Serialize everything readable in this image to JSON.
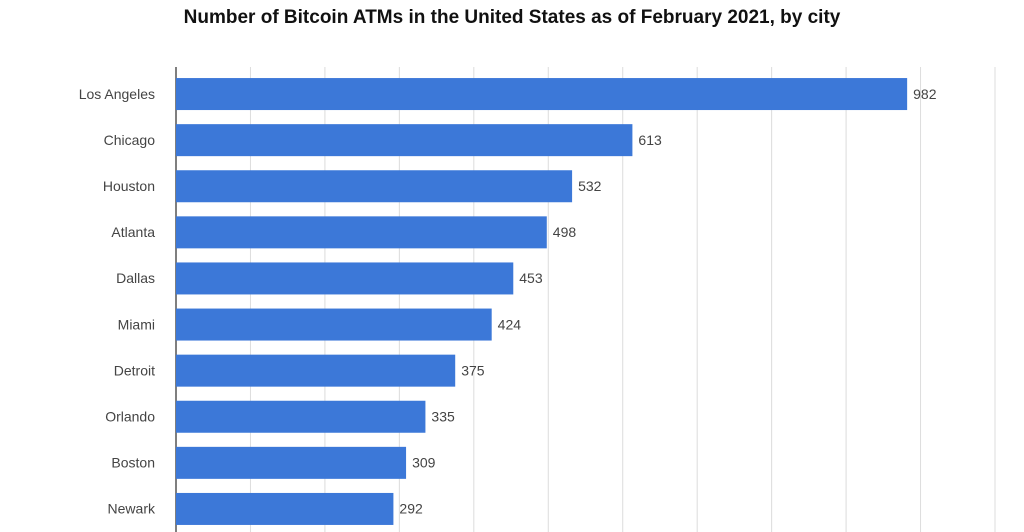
{
  "chart_data": {
    "type": "bar",
    "orientation": "horizontal",
    "title": "Number of Bitcoin ATMs in the United States as of February 2021, by city",
    "categories": [
      "Los Angeles",
      "Chicago",
      "Houston",
      "Atlanta",
      "Dallas",
      "Miami",
      "Detroit",
      "Orlando",
      "Boston",
      "Newark"
    ],
    "values": [
      982,
      613,
      532,
      498,
      453,
      424,
      375,
      335,
      309,
      292
    ],
    "color": "#3c78d8",
    "xlim": [
      0,
      1100
    ],
    "xticks": [
      0,
      100,
      200,
      300,
      400,
      500,
      600,
      700,
      800,
      900,
      1000,
      1100
    ],
    "grid": true
  }
}
